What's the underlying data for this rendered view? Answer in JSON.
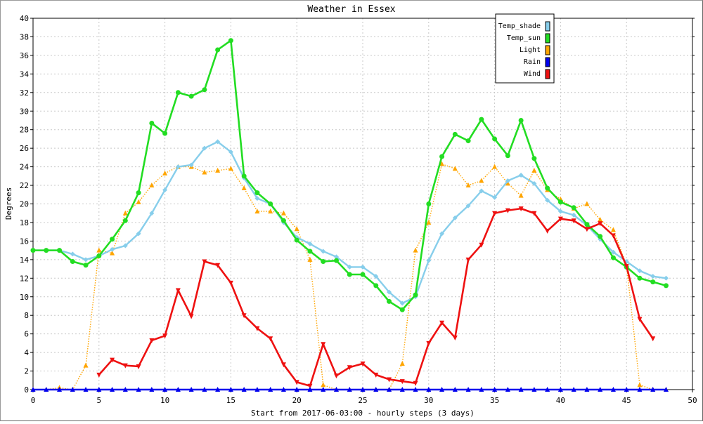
{
  "chart_data": {
    "type": "line",
    "title": "Weather in Essex",
    "xlabel": "Start from 2017-06-03:00 - hourly steps (3 days)",
    "ylabel": "Degrees",
    "xlim": [
      0,
      50
    ],
    "ylim": [
      0,
      40
    ],
    "x_ticks": [
      0,
      5,
      10,
      15,
      20,
      25,
      30,
      35,
      40,
      45,
      50
    ],
    "y_ticks": [
      0,
      2,
      4,
      6,
      8,
      10,
      12,
      14,
      16,
      18,
      20,
      22,
      24,
      26,
      28,
      30,
      32,
      34,
      36,
      38,
      40
    ],
    "grid": true,
    "legend_position": "top-right",
    "series": [
      {
        "name": "Temp_shade",
        "color": "#87ceeb",
        "marker": "diamond",
        "style": "solid",
        "x": [
          0,
          1,
          2,
          3,
          4,
          5,
          6,
          7,
          8,
          9,
          10,
          11,
          12,
          13,
          14,
          15,
          16,
          17,
          18,
          19,
          20,
          21,
          22,
          23,
          24,
          25,
          26,
          27,
          28,
          29,
          30,
          31,
          32,
          33,
          34,
          35,
          36,
          37,
          38,
          39,
          40,
          41,
          42,
          43,
          44,
          45,
          46,
          47,
          48
        ],
        "values": [
          15.0,
          15.0,
          15.0,
          14.6,
          14.0,
          14.4,
          15.1,
          15.5,
          16.8,
          19.0,
          21.5,
          24.0,
          24.2,
          26.0,
          26.7,
          25.6,
          22.8,
          20.6,
          20.0,
          18.0,
          16.4,
          15.7,
          14.9,
          14.3,
          13.2,
          13.2,
          12.2,
          10.5,
          9.3,
          10.0,
          13.9,
          16.8,
          18.5,
          19.8,
          21.4,
          20.7,
          22.5,
          23.1,
          22.2,
          20.4,
          19.2,
          18.8,
          17.7,
          16.2,
          14.8,
          13.8,
          12.8,
          12.2,
          12.0
        ]
      },
      {
        "name": "Temp_sun",
        "color": "#22dd22",
        "marker": "circle",
        "style": "solid",
        "x": [
          0,
          1,
          2,
          3,
          4,
          5,
          6,
          7,
          8,
          9,
          10,
          11,
          12,
          13,
          14,
          15,
          16,
          17,
          18,
          19,
          20,
          21,
          22,
          23,
          24,
          25,
          26,
          27,
          28,
          29,
          30,
          31,
          32,
          33,
          34,
          35,
          36,
          37,
          38,
          39,
          40,
          41,
          42,
          43,
          44,
          45,
          46,
          47,
          48
        ],
        "values": [
          15.0,
          15.0,
          15.0,
          13.8,
          13.4,
          14.4,
          16.2,
          18.2,
          21.2,
          28.7,
          27.6,
          32.0,
          31.6,
          32.3,
          36.6,
          37.6,
          23.0,
          21.2,
          20.0,
          18.2,
          16.1,
          14.9,
          13.8,
          13.9,
          12.4,
          12.4,
          11.2,
          9.5,
          8.6,
          10.2,
          20.0,
          25.1,
          27.5,
          26.8,
          29.1,
          27.0,
          25.2,
          29.0,
          24.9,
          21.7,
          20.2,
          19.6,
          17.8,
          16.5,
          14.2,
          13.2,
          12.0,
          11.6,
          11.2
        ]
      },
      {
        "name": "Light",
        "color": "#ffa500",
        "marker": "triangle-up",
        "style": "dotted",
        "x": [
          0,
          1,
          2,
          3,
          4,
          5,
          6,
          7,
          8,
          9,
          10,
          11,
          12,
          13,
          14,
          15,
          16,
          17,
          18,
          19,
          20,
          21,
          22,
          23,
          24,
          25,
          26,
          27,
          28,
          29,
          30,
          31,
          32,
          33,
          34,
          35,
          36,
          37,
          38,
          39,
          40,
          41,
          42,
          43,
          44,
          45,
          46,
          47,
          48
        ],
        "values": [
          0,
          0,
          0.2,
          0,
          2.6,
          15.0,
          14.7,
          19.0,
          20.2,
          22.0,
          23.3,
          24.0,
          24.0,
          23.4,
          23.6,
          23.8,
          21.7,
          19.2,
          19.2,
          19.0,
          17.3,
          14.0,
          0.5,
          0,
          0,
          0,
          0,
          0,
          2.8,
          15.0,
          18.0,
          24.3,
          23.8,
          22.0,
          22.5,
          24.0,
          22.2,
          20.9,
          23.6,
          21.5,
          20.5,
          19.5,
          20.0,
          18.3,
          17.2,
          13.4,
          0.5,
          0,
          0
        ]
      },
      {
        "name": "Rain",
        "color": "#0000ee",
        "marker": "triangle-up",
        "style": "solid",
        "x": [
          0,
          1,
          2,
          3,
          4,
          5,
          6,
          7,
          8,
          9,
          10,
          11,
          12,
          13,
          14,
          15,
          16,
          17,
          18,
          19,
          20,
          21,
          22,
          23,
          24,
          25,
          26,
          27,
          28,
          29,
          30,
          31,
          32,
          33,
          34,
          35,
          36,
          37,
          38,
          39,
          40,
          41,
          42,
          43,
          44,
          45,
          46,
          47,
          48
        ],
        "values": [
          0,
          0,
          0,
          0,
          0,
          0,
          0,
          0,
          0,
          0,
          0,
          0,
          0,
          0,
          0,
          0,
          0,
          0,
          0,
          0,
          0,
          0,
          0,
          0,
          0,
          0,
          0,
          0,
          0,
          0,
          0,
          0,
          0,
          0,
          0,
          0,
          0,
          0,
          0,
          0,
          0,
          0,
          0,
          0,
          0,
          0,
          0,
          0,
          0
        ]
      },
      {
        "name": "Wind",
        "color": "#ee1111",
        "marker": "triangle-down",
        "style": "solid",
        "x": [
          5,
          6,
          7,
          8,
          9,
          10,
          11,
          12,
          13,
          14,
          15,
          16,
          17,
          18,
          19,
          20,
          21,
          22,
          23,
          24,
          25,
          26,
          27,
          28,
          29,
          30,
          31,
          32,
          33,
          34,
          35,
          36,
          37,
          38,
          39,
          40,
          41,
          42,
          43,
          44,
          45,
          46,
          47
        ],
        "values": [
          1.6,
          3.2,
          2.6,
          2.5,
          5.3,
          5.8,
          10.7,
          7.9,
          13.8,
          13.4,
          11.5,
          8.0,
          6.6,
          5.5,
          2.7,
          0.8,
          0.4,
          4.9,
          1.5,
          2.4,
          2.8,
          1.6,
          1.1,
          0.9,
          0.7,
          5.0,
          7.2,
          5.6,
          14.0,
          15.6,
          19.0,
          19.3,
          19.5,
          19.0,
          17.1,
          18.4,
          18.2,
          17.3,
          17.9,
          16.6,
          13.3,
          7.6,
          5.5
        ]
      }
    ]
  }
}
